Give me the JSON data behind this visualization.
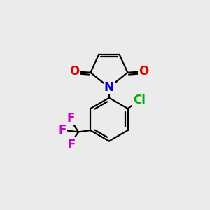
{
  "background_color": "#ebebeb",
  "bond_color": "#000000",
  "n_color": "#0000dd",
  "o_color": "#dd0000",
  "cl_color": "#00aa00",
  "f_color": "#cc00cc",
  "bond_width": 1.6,
  "font_size_atom": 12,
  "xlim": [
    0,
    10
  ],
  "ylim": [
    0,
    10
  ]
}
